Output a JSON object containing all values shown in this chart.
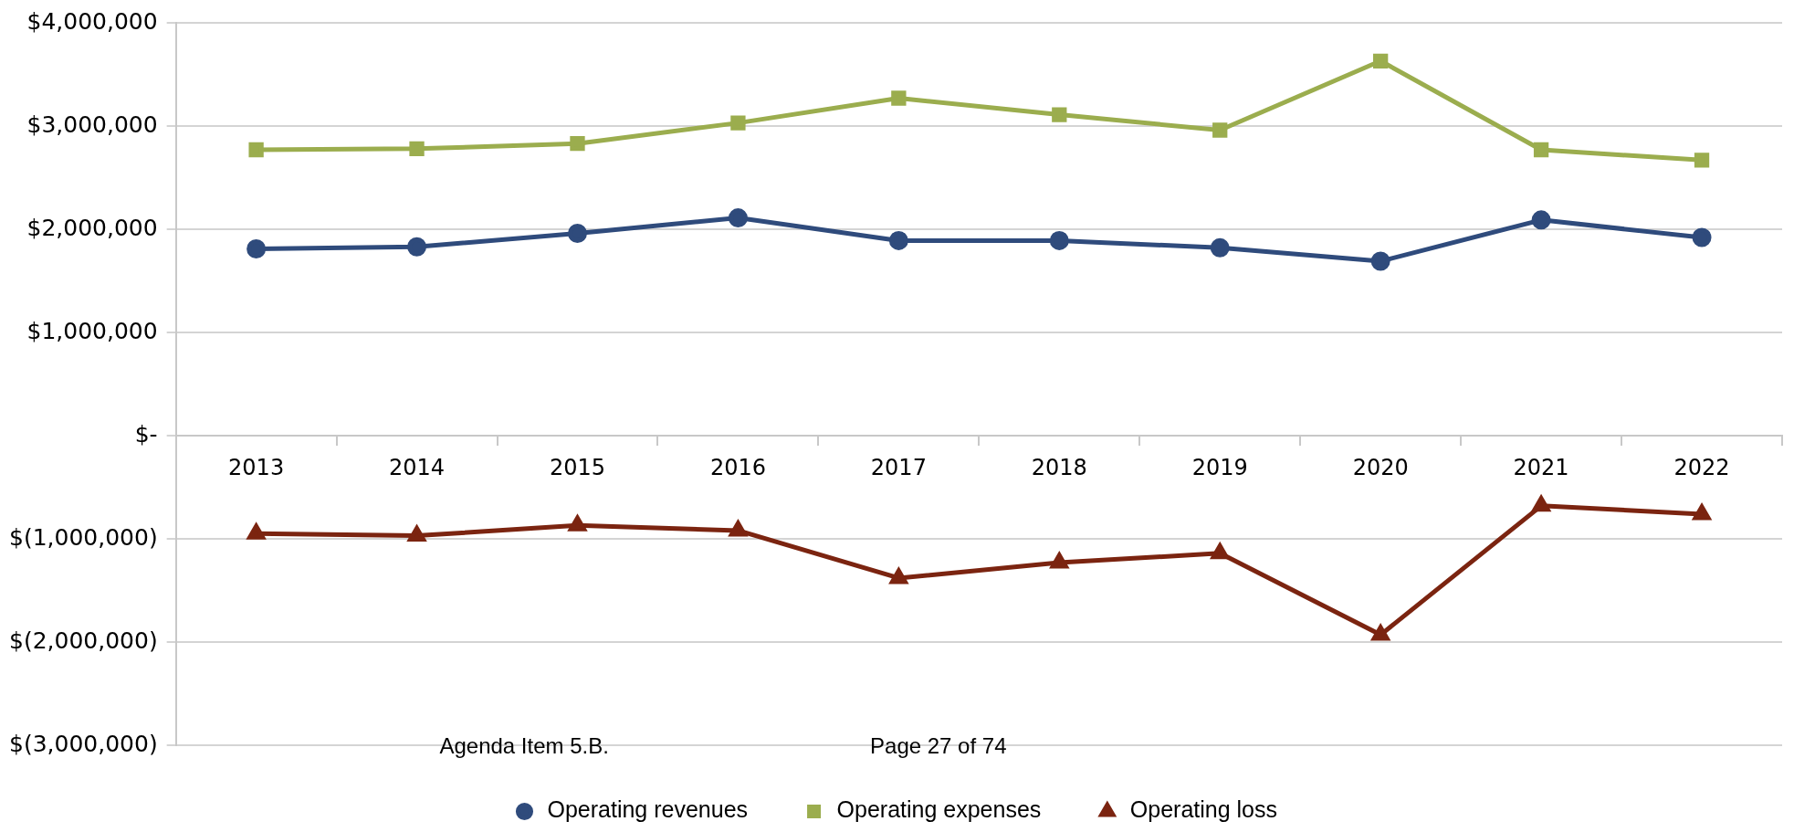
{
  "chart_data": {
    "type": "line",
    "categories": [
      "2013",
      "2014",
      "2015",
      "2016",
      "2017",
      "2018",
      "2019",
      "2020",
      "2021",
      "2022"
    ],
    "series": [
      {
        "name": "Operating revenues",
        "color": "#2f4b7c",
        "marker": "circle",
        "values": [
          1810000,
          1830000,
          1960000,
          2110000,
          1890000,
          1890000,
          1820000,
          1690000,
          2090000,
          1920000
        ]
      },
      {
        "name": "Operating expenses",
        "color": "#9bad4e",
        "marker": "square",
        "values": [
          2770000,
          2780000,
          2830000,
          3030000,
          3270000,
          3110000,
          2960000,
          3630000,
          2770000,
          2670000
        ]
      },
      {
        "name": "Operating loss",
        "color": "#7b2410",
        "marker": "triangle",
        "values": [
          -950000,
          -970000,
          -870000,
          -920000,
          -1380000,
          -1230000,
          -1140000,
          -1930000,
          -680000,
          -760000
        ]
      }
    ],
    "ylim": [
      -3000000,
      4000000
    ],
    "yticks": [
      {
        "value": -3000000,
        "label": "$(3,000,000)"
      },
      {
        "value": -2000000,
        "label": "$(2,000,000)"
      },
      {
        "value": -1000000,
        "label": "$(1,000,000)"
      },
      {
        "value": 0,
        "label": "$-"
      },
      {
        "value": 1000000,
        "label": "$1,000,000"
      },
      {
        "value": 2000000,
        "label": "$2,000,000"
      },
      {
        "value": 3000000,
        "label": "$3,000,000"
      },
      {
        "value": 4000000,
        "label": "$4,000,000"
      }
    ],
    "grid": "y",
    "legend": "bottom",
    "line_style": "solid",
    "annotations": [
      "Agenda Item 5.B.",
      "Page 27 of 74"
    ]
  }
}
